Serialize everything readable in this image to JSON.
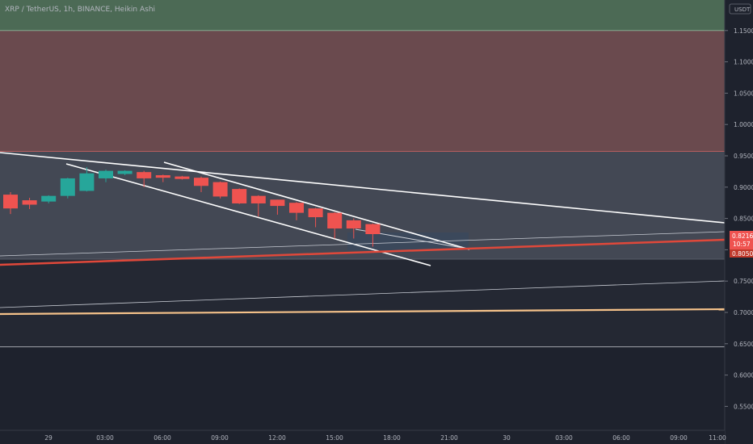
{
  "title": "XRP / TetherUS, 1h, BINANCE, Heikin Ashi",
  "currency": "USDT",
  "colors": {
    "background": "#1e222d",
    "bull": "#26a69a",
    "bear": "#ef5350",
    "green_zone": "#4c6a55",
    "red_zone": "#6a4a4e",
    "grey_zone": "#434854",
    "support_red": "#e0483a",
    "support_orange": "#f5c28a",
    "line_white": "#ffffff",
    "text": "#b2b5be"
  },
  "price_tags": {
    "upper": "0.8216",
    "countdown": "10:57",
    "lower": "0.8050"
  },
  "chart_data": {
    "type": "candlestick",
    "style": "Heikin Ashi",
    "interval": "1h",
    "symbol": "XRP / TetherUS",
    "exchange": "BINANCE",
    "y_ticks": [
      "1.1500",
      "1.1000",
      "1.0500",
      "1.0000",
      "0.9500",
      "0.9000",
      "0.8500",
      "0.8000",
      "0.7500",
      "0.7000",
      "0.6500",
      "0.6000",
      "0.5500"
    ],
    "x_ticks": [
      "29",
      "03:00",
      "06:00",
      "09:00",
      "12:00",
      "15:00",
      "18:00",
      "21:00",
      "30",
      "03:00",
      "06:00",
      "09:00",
      "11:00"
    ],
    "candles": [
      {
        "open": 0.888,
        "close": 0.866,
        "high": 0.892,
        "low": 0.857
      },
      {
        "open": 0.879,
        "close": 0.872,
        "high": 0.883,
        "low": 0.865
      },
      {
        "open": 0.877,
        "close": 0.886,
        "high": 0.887,
        "low": 0.874
      },
      {
        "open": 0.886,
        "close": 0.914,
        "high": 0.915,
        "low": 0.882
      },
      {
        "open": 0.894,
        "close": 0.922,
        "high": 0.932,
        "low": 0.893
      },
      {
        "open": 0.914,
        "close": 0.926,
        "high": 0.928,
        "low": 0.908
      },
      {
        "open": 0.921,
        "close": 0.926,
        "high": 0.927,
        "low": 0.919
      },
      {
        "open": 0.924,
        "close": 0.914,
        "high": 0.926,
        "low": 0.9
      },
      {
        "open": 0.919,
        "close": 0.915,
        "high": 0.92,
        "low": 0.908
      },
      {
        "open": 0.917,
        "close": 0.913,
        "high": 0.918,
        "low": 0.912
      },
      {
        "open": 0.915,
        "close": 0.902,
        "high": 0.917,
        "low": 0.892
      },
      {
        "open": 0.908,
        "close": 0.885,
        "high": 0.909,
        "low": 0.882
      },
      {
        "open": 0.897,
        "close": 0.874,
        "high": 0.898,
        "low": 0.873
      },
      {
        "open": 0.886,
        "close": 0.874,
        "high": 0.887,
        "low": 0.853
      },
      {
        "open": 0.88,
        "close": 0.87,
        "high": 0.88,
        "low": 0.856
      },
      {
        "open": 0.875,
        "close": 0.859,
        "high": 0.876,
        "low": 0.847
      },
      {
        "open": 0.866,
        "close": 0.852,
        "high": 0.867,
        "low": 0.836
      },
      {
        "open": 0.859,
        "close": 0.834,
        "high": 0.86,
        "low": 0.818
      },
      {
        "open": 0.847,
        "close": 0.834,
        "high": 0.85,
        "low": 0.818
      },
      {
        "open": 0.841,
        "close": 0.825,
        "high": 0.842,
        "low": 0.805
      }
    ],
    "zones": [
      {
        "name": "green",
        "from": 1.15,
        "to": 1.2
      },
      {
        "name": "red",
        "from": 0.957,
        "to": 1.15
      },
      {
        "name": "grey",
        "from": 0.785,
        "to": 0.957
      },
      {
        "name": "dark",
        "from": 0.645,
        "to": 0.785
      }
    ],
    "y_range": [
      0.53,
      1.2
    ],
    "grid": false
  }
}
